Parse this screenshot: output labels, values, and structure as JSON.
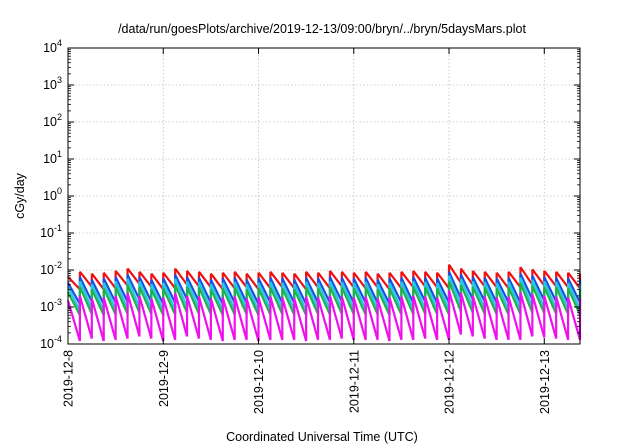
{
  "chart_data": {
    "type": "line",
    "title": "/data/run/goesPlots/archive/2019-12-13/09:00/bryn/../bryn/5daysMars.plot",
    "xlabel": "Coordinated Universal Time (UTC)",
    "ylabel": "cGy/day",
    "yscale": "log",
    "ylim": [
      0.0001,
      10000
    ],
    "xlim": [
      "2019-12-08 00:00",
      "2019-12-13 09:00"
    ],
    "grid": true,
    "x_ticks": [
      "2019-12-8",
      "2019-12-9",
      "2019-12-10",
      "2019-12-11",
      "2019-12-12",
      "2019-12-13"
    ],
    "y_ticks": [
      {
        "base": "10",
        "exp": "-4",
        "value": 0.0001
      },
      {
        "base": "10",
        "exp": "-3",
        "value": 0.001
      },
      {
        "base": "10",
        "exp": "-2",
        "value": 0.01
      },
      {
        "base": "10",
        "exp": "-1",
        "value": 0.1
      },
      {
        "base": "10",
        "exp": "0",
        "value": 1
      },
      {
        "base": "10",
        "exp": "1",
        "value": 10
      },
      {
        "base": "10",
        "exp": "2",
        "value": 100
      },
      {
        "base": "10",
        "exp": "3",
        "value": 1000
      },
      {
        "base": "10",
        "exp": "4",
        "value": 10000
      }
    ],
    "spike_times": [
      "2019-12-08 00:00",
      "2019-12-08 03:00",
      "2019-12-08 06:00",
      "2019-12-08 09:00",
      "2019-12-08 12:00",
      "2019-12-08 15:00",
      "2019-12-08 18:00",
      "2019-12-08 21:00",
      "2019-12-09 00:00",
      "2019-12-09 03:00",
      "2019-12-09 06:00",
      "2019-12-09 09:00",
      "2019-12-09 12:00",
      "2019-12-09 15:00",
      "2019-12-09 18:00",
      "2019-12-09 21:00",
      "2019-12-10 00:00",
      "2019-12-10 03:00",
      "2019-12-10 06:00",
      "2019-12-10 09:00",
      "2019-12-10 12:00",
      "2019-12-10 15:00",
      "2019-12-10 18:00",
      "2019-12-10 21:00",
      "2019-12-11 00:00",
      "2019-12-11 03:00",
      "2019-12-11 06:00",
      "2019-12-11 09:00",
      "2019-12-11 12:00",
      "2019-12-11 15:00",
      "2019-12-11 18:00",
      "2019-12-11 21:00",
      "2019-12-12 00:00",
      "2019-12-12 03:00",
      "2019-12-12 06:00",
      "2019-12-12 09:00",
      "2019-12-12 12:00",
      "2019-12-12 15:00",
      "2019-12-12 18:00",
      "2019-12-12 21:00",
      "2019-12-13 00:00",
      "2019-12-13 03:00",
      "2019-12-13 06:00",
      "2019-12-13 09:00"
    ],
    "series": [
      {
        "color": "#ee1111",
        "values": [
          [
            0.0065,
            0.003
          ],
          [
            0.009,
            0.0035
          ],
          [
            0.008,
            0.003
          ],
          [
            0.0085,
            0.0032
          ],
          [
            0.0095,
            0.0038
          ],
          [
            0.011,
            0.0042
          ],
          [
            0.009,
            0.0035
          ],
          [
            0.008,
            0.003
          ],
          [
            0.0085,
            0.0032
          ],
          [
            0.011,
            0.004
          ],
          [
            0.0095,
            0.0036
          ],
          [
            0.009,
            0.0034
          ],
          [
            0.008,
            0.003
          ],
          [
            0.0085,
            0.0032
          ],
          [
            0.009,
            0.0034
          ],
          [
            0.008,
            0.003
          ],
          [
            0.0085,
            0.0032
          ],
          [
            0.009,
            0.0034
          ],
          [
            0.0085,
            0.0032
          ],
          [
            0.008,
            0.003
          ],
          [
            0.009,
            0.0034
          ],
          [
            0.0085,
            0.0032
          ],
          [
            0.0095,
            0.0036
          ],
          [
            0.009,
            0.0034
          ],
          [
            0.0085,
            0.0032
          ],
          [
            0.009,
            0.0034
          ],
          [
            0.008,
            0.003
          ],
          [
            0.0085,
            0.0032
          ],
          [
            0.009,
            0.0034
          ],
          [
            0.0095,
            0.0036
          ],
          [
            0.009,
            0.0034
          ],
          [
            0.0085,
            0.0032
          ],
          [
            0.014,
            0.0045
          ],
          [
            0.011,
            0.004
          ],
          [
            0.0095,
            0.0036
          ],
          [
            0.009,
            0.0034
          ],
          [
            0.0085,
            0.0032
          ],
          [
            0.009,
            0.0034
          ],
          [
            0.012,
            0.004
          ],
          [
            0.0105,
            0.0038
          ],
          [
            0.0095,
            0.0036
          ],
          [
            0.009,
            0.0034
          ],
          [
            0.0085,
            0.0032
          ],
          [
            0.008,
            0.003
          ]
        ]
      },
      {
        "color": "#1a4fe0",
        "values": [
          [
            0.0045,
            0.0012
          ],
          [
            0.0065,
            0.0014
          ],
          [
            0.0055,
            0.0012
          ],
          [
            0.006,
            0.0013
          ],
          [
            0.0065,
            0.0014
          ],
          [
            0.0075,
            0.0016
          ],
          [
            0.0065,
            0.0014
          ],
          [
            0.0055,
            0.0012
          ],
          [
            0.006,
            0.0013
          ],
          [
            0.0075,
            0.0016
          ],
          [
            0.0065,
            0.0014
          ],
          [
            0.0062,
            0.0013
          ],
          [
            0.0055,
            0.0012
          ],
          [
            0.006,
            0.0013
          ],
          [
            0.0062,
            0.0013
          ],
          [
            0.0055,
            0.0012
          ],
          [
            0.006,
            0.0013
          ],
          [
            0.0062,
            0.0013
          ],
          [
            0.006,
            0.0013
          ],
          [
            0.0055,
            0.0012
          ],
          [
            0.0062,
            0.0013
          ],
          [
            0.006,
            0.0013
          ],
          [
            0.0065,
            0.0014
          ],
          [
            0.0062,
            0.0013
          ],
          [
            0.006,
            0.0013
          ],
          [
            0.0062,
            0.0013
          ],
          [
            0.0055,
            0.0012
          ],
          [
            0.006,
            0.0013
          ],
          [
            0.0062,
            0.0013
          ],
          [
            0.0065,
            0.0014
          ],
          [
            0.0062,
            0.0013
          ],
          [
            0.006,
            0.0013
          ],
          [
            0.009,
            0.0017
          ],
          [
            0.0075,
            0.0016
          ],
          [
            0.0065,
            0.0014
          ],
          [
            0.0062,
            0.0013
          ],
          [
            0.006,
            0.0013
          ],
          [
            0.0062,
            0.0013
          ],
          [
            0.008,
            0.0016
          ],
          [
            0.007,
            0.0015
          ],
          [
            0.0065,
            0.0014
          ],
          [
            0.0062,
            0.0013
          ],
          [
            0.006,
            0.0013
          ],
          [
            0.0055,
            0.0012
          ]
        ]
      },
      {
        "color": "#22c8e6",
        "values": [
          [
            0.0035,
            0.0008
          ],
          [
            0.005,
            0.0009
          ],
          [
            0.0042,
            0.0008
          ],
          [
            0.0045,
            0.00085
          ],
          [
            0.005,
            0.0009
          ],
          [
            0.0058,
            0.001
          ],
          [
            0.005,
            0.0009
          ],
          [
            0.0042,
            0.0008
          ],
          [
            0.0045,
            0.00085
          ],
          [
            0.0058,
            0.001
          ],
          [
            0.005,
            0.0009
          ],
          [
            0.0048,
            0.00088
          ],
          [
            0.0042,
            0.0008
          ],
          [
            0.0045,
            0.00085
          ],
          [
            0.0048,
            0.00088
          ],
          [
            0.0042,
            0.0008
          ],
          [
            0.0045,
            0.00085
          ],
          [
            0.0048,
            0.00088
          ],
          [
            0.0045,
            0.00085
          ],
          [
            0.0042,
            0.0008
          ],
          [
            0.0048,
            0.00088
          ],
          [
            0.0045,
            0.00085
          ],
          [
            0.005,
            0.0009
          ],
          [
            0.0048,
            0.00088
          ],
          [
            0.0045,
            0.00085
          ],
          [
            0.0048,
            0.00088
          ],
          [
            0.0042,
            0.0008
          ],
          [
            0.0045,
            0.00085
          ],
          [
            0.0048,
            0.00088
          ],
          [
            0.005,
            0.0009
          ],
          [
            0.0048,
            0.00088
          ],
          [
            0.0045,
            0.00085
          ],
          [
            0.007,
            0.0011
          ],
          [
            0.0058,
            0.001
          ],
          [
            0.005,
            0.0009
          ],
          [
            0.0048,
            0.00088
          ],
          [
            0.0045,
            0.00085
          ],
          [
            0.0048,
            0.00088
          ],
          [
            0.0062,
            0.001
          ],
          [
            0.0055,
            0.00095
          ],
          [
            0.005,
            0.0009
          ],
          [
            0.0048,
            0.00088
          ],
          [
            0.0045,
            0.00085
          ],
          [
            0.0042,
            0.0008
          ]
        ]
      },
      {
        "color": "#22b04a",
        "values": [
          [
            0.0025,
            0.0006
          ],
          [
            0.0035,
            0.00065
          ],
          [
            0.003,
            0.0006
          ],
          [
            0.0032,
            0.00062
          ],
          [
            0.0035,
            0.00065
          ],
          [
            0.004,
            0.0007
          ],
          [
            0.0035,
            0.00065
          ],
          [
            0.003,
            0.0006
          ],
          [
            0.0032,
            0.00062
          ],
          [
            0.004,
            0.0007
          ],
          [
            0.0035,
            0.00065
          ],
          [
            0.0034,
            0.00064
          ],
          [
            0.003,
            0.0006
          ],
          [
            0.0032,
            0.00062
          ],
          [
            0.0034,
            0.00064
          ],
          [
            0.003,
            0.0006
          ],
          [
            0.0032,
            0.00062
          ],
          [
            0.0034,
            0.00064
          ],
          [
            0.0032,
            0.00062
          ],
          [
            0.003,
            0.0006
          ],
          [
            0.0034,
            0.00064
          ],
          [
            0.0032,
            0.00062
          ],
          [
            0.0035,
            0.00065
          ],
          [
            0.0034,
            0.00064
          ],
          [
            0.0032,
            0.00062
          ],
          [
            0.0034,
            0.00064
          ],
          [
            0.003,
            0.0006
          ],
          [
            0.0032,
            0.00062
          ],
          [
            0.0034,
            0.00064
          ],
          [
            0.0035,
            0.00065
          ],
          [
            0.0034,
            0.00064
          ],
          [
            0.0032,
            0.00062
          ],
          [
            0.005,
            0.00075
          ],
          [
            0.004,
            0.0007
          ],
          [
            0.0035,
            0.00065
          ],
          [
            0.0034,
            0.00064
          ],
          [
            0.0032,
            0.00062
          ],
          [
            0.0034,
            0.00064
          ],
          [
            0.0044,
            0.0007
          ],
          [
            0.0038,
            0.00068
          ],
          [
            0.0035,
            0.00065
          ],
          [
            0.0034,
            0.00064
          ],
          [
            0.0032,
            0.00062
          ],
          [
            0.003,
            0.0006
          ]
        ]
      },
      {
        "color": "#ee11ee",
        "values": [
          [
            0.0015,
            0.00012
          ],
          [
            0.002,
            0.00014
          ],
          [
            0.0017,
            0.00012
          ],
          [
            0.0018,
            0.00013
          ],
          [
            0.002,
            0.00014
          ],
          [
            0.0024,
            0.00016
          ],
          [
            0.002,
            0.00014
          ],
          [
            0.0017,
            0.00012
          ],
          [
            0.0018,
            0.00013
          ],
          [
            0.0024,
            0.00016
          ],
          [
            0.002,
            0.00014
          ],
          [
            0.0019,
            0.00013
          ],
          [
            0.0017,
            0.00012
          ],
          [
            0.0018,
            0.00013
          ],
          [
            0.0019,
            0.00013
          ],
          [
            0.0017,
            0.00012
          ],
          [
            0.0018,
            0.00013
          ],
          [
            0.0019,
            0.00013
          ],
          [
            0.0018,
            0.00013
          ],
          [
            0.0017,
            0.00012
          ],
          [
            0.0019,
            0.00013
          ],
          [
            0.0018,
            0.00013
          ],
          [
            0.002,
            0.00014
          ],
          [
            0.0019,
            0.00013
          ],
          [
            0.0018,
            0.00013
          ],
          [
            0.0019,
            0.00013
          ],
          [
            0.0017,
            0.00012
          ],
          [
            0.0018,
            0.00013
          ],
          [
            0.0019,
            0.00013
          ],
          [
            0.002,
            0.00014
          ],
          [
            0.0019,
            0.00013
          ],
          [
            0.0018,
            0.00013
          ],
          [
            0.0028,
            0.00018
          ],
          [
            0.0024,
            0.00016
          ],
          [
            0.002,
            0.00014
          ],
          [
            0.0019,
            0.00013
          ],
          [
            0.0018,
            0.00013
          ],
          [
            0.0019,
            0.00013
          ],
          [
            0.0025,
            0.00016
          ],
          [
            0.0022,
            0.00015
          ],
          [
            0.002,
            0.00014
          ],
          [
            0.0019,
            0.00013
          ],
          [
            0.0018,
            0.00013
          ],
          [
            0.0017,
            0.00012
          ]
        ]
      }
    ]
  }
}
